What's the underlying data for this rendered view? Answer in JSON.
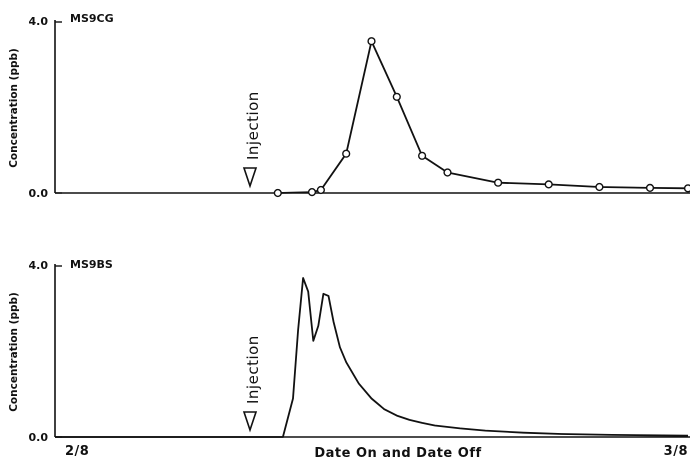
{
  "chart_data": [
    {
      "type": "line",
      "title": "MS9CG",
      "ylabel": "Concentration (ppb)",
      "ylim": [
        0,
        4.0
      ],
      "y_tick_labels": [
        "0.0",
        "4.0"
      ],
      "markers": true,
      "annotation": "Injection",
      "series": [
        {
          "x": [
            17.6,
            20.3,
            21.0,
            23.0,
            25.0,
            27.0,
            29.0,
            31.0,
            35.0,
            39.0,
            43.0,
            47.0,
            50.0
          ],
          "y": [
            0.0,
            0.02,
            0.07,
            0.92,
            3.55,
            2.25,
            0.87,
            0.48,
            0.24,
            0.2,
            0.14,
            0.12,
            0.11
          ]
        }
      ]
    },
    {
      "type": "line",
      "title": "MS9BS",
      "ylabel": "Concentration (ppb)",
      "ylim": [
        0,
        4.0
      ],
      "y_tick_labels": [
        "0.0",
        "4.0"
      ],
      "markers": false,
      "annotation": "Injection",
      "series": [
        {
          "x": [
            0,
            18.0,
            18.8,
            19.2,
            19.6,
            20.0,
            20.4,
            20.8,
            21.2,
            21.6,
            22.0,
            22.5,
            23.0,
            24.0,
            25.0,
            26.0,
            27.0,
            28.0,
            29.0,
            30.0,
            32.0,
            34.0,
            37.0,
            40.0,
            44.0,
            47.0,
            50.0
          ],
          "y": [
            0,
            0,
            0.9,
            2.5,
            3.72,
            3.4,
            2.25,
            2.6,
            3.35,
            3.3,
            2.7,
            2.1,
            1.75,
            1.25,
            0.9,
            0.65,
            0.5,
            0.4,
            0.33,
            0.27,
            0.2,
            0.15,
            0.1,
            0.07,
            0.05,
            0.04,
            0.03
          ]
        }
      ]
    }
  ],
  "x_axis": {
    "xlim": [
      0,
      50
    ],
    "start_label": "2/8",
    "end_label": "3/8",
    "xlabel": "Date On and Date Off",
    "injection_x": 13.6
  }
}
